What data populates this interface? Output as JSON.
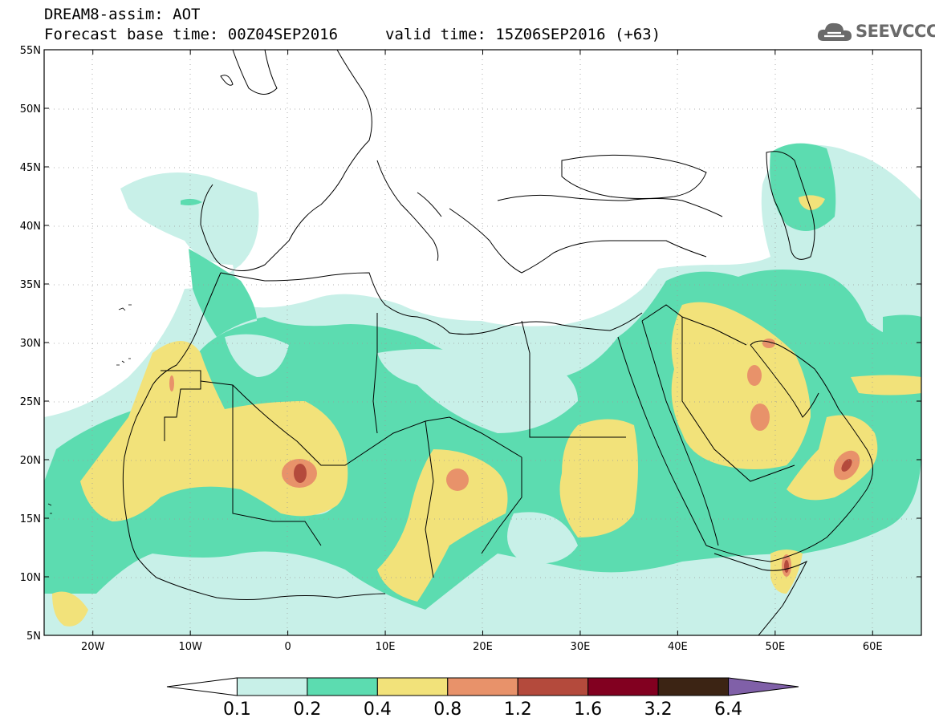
{
  "header": {
    "line1": "DREAM8-assim: AOT",
    "line2": "Forecast base time: 00Z04SEP2016",
    "line3": "valid time: 15Z06SEP2016 (+63)",
    "logo_text": "SEEVCCC"
  },
  "map": {
    "lon_range": [
      -25,
      65
    ],
    "lat_range": [
      5,
      55
    ],
    "lat_labels": [
      "55N",
      "50N",
      "45N",
      "40N",
      "35N",
      "30N",
      "25N",
      "20N",
      "15N",
      "10N",
      "5N"
    ],
    "lat_values": [
      55,
      50,
      45,
      40,
      35,
      30,
      25,
      20,
      15,
      10,
      5
    ],
    "lon_labels": [
      "20W",
      "10W",
      "0",
      "10E",
      "20E",
      "30E",
      "40E",
      "50E",
      "60E"
    ],
    "lon_values": [
      -20,
      -10,
      0,
      10,
      20,
      30,
      40,
      50,
      60
    ],
    "gridlines": "dotted"
  },
  "colorbar": {
    "labels": [
      "0.1",
      "0.2",
      "0.4",
      "0.8",
      "1.2",
      "1.6",
      "3.2",
      "6.4"
    ],
    "colors": [
      "#ffffff",
      "#c8f0e8",
      "#5cdcb0",
      "#f2e27a",
      "#e8926a",
      "#b44a3c",
      "#820020",
      "#3c2414",
      "#8060a8"
    ]
  }
}
